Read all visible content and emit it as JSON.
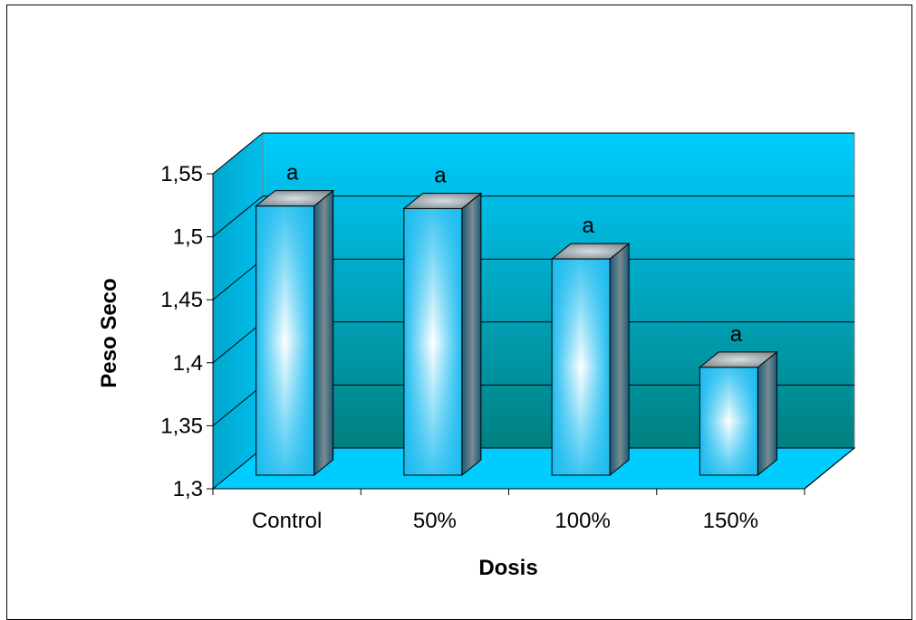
{
  "chart_data": {
    "type": "bar",
    "title": "",
    "xlabel": "Dosis",
    "ylabel": "Peso Seco",
    "categories": [
      "Control",
      "50%",
      "100%",
      "150%"
    ],
    "values": [
      1.533,
      1.531,
      1.491,
      1.405
    ],
    "bar_labels": [
      "a",
      "a",
      "a",
      "a"
    ],
    "ylim": [
      1.3,
      1.55
    ],
    "yticks": [
      "1,3",
      "1,35",
      "1,4",
      "1,45",
      "1,5",
      "1,55"
    ],
    "ytick_values": [
      1.3,
      1.35,
      1.4,
      1.45,
      1.5,
      1.55
    ],
    "grid": true,
    "style": "3d-column",
    "colors": {
      "wall_top": "#00CCFF",
      "wall_bottom": "#008080",
      "floor": "#00CCFF",
      "bar_edge": "#1BBBEF",
      "bar_center": "#FFFFFF",
      "bar_side": "#1A6A86",
      "bar_top": "#9CA8AD"
    }
  }
}
